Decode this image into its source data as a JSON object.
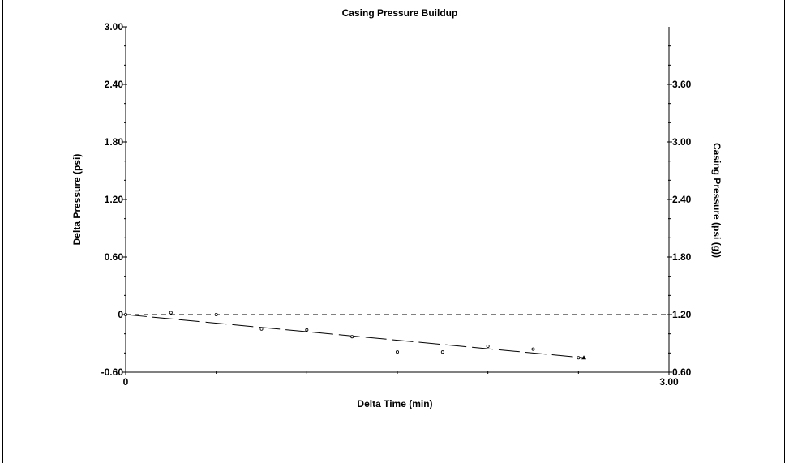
{
  "chart_data": {
    "type": "scatter",
    "title": "Casing Pressure Buildup",
    "xlabel": "Delta Time (min)",
    "ylabel": "Delta Pressure (psi)",
    "y2label": "Casing Pressure (psi (g))",
    "xlim": [
      0,
      3.0
    ],
    "ylim": [
      -0.6,
      3.0
    ],
    "y2lim": [
      0.6,
      4.2
    ],
    "x_ticks": [
      "0",
      "3.00"
    ],
    "y_ticks": [
      "3.00",
      "2.40",
      "1.80",
      "1.20",
      "0.60",
      "0",
      "-0.60"
    ],
    "y2_ticks": [
      "3.60",
      "3.00",
      "2.40",
      "1.80",
      "1.20",
      "0.60"
    ],
    "grid": false,
    "series": [
      {
        "type": "scatter",
        "x": [
          0.0,
          0.25,
          0.5,
          0.75,
          1.0,
          1.25,
          1.5,
          1.75,
          2.0,
          2.25,
          2.5,
          2.53
        ],
        "y": [
          0.0,
          0.02,
          0.0,
          -0.15,
          -0.16,
          -0.23,
          -0.39,
          -0.39,
          -0.33,
          -0.36,
          -0.45,
          -0.45
        ]
      }
    ],
    "trendline": {
      "x": [
        0.0,
        2.53
      ],
      "y": [
        0.0,
        -0.45
      ],
      "style": "long-dash"
    },
    "reference_line": {
      "y": 0.0,
      "style": "short-dash"
    }
  }
}
